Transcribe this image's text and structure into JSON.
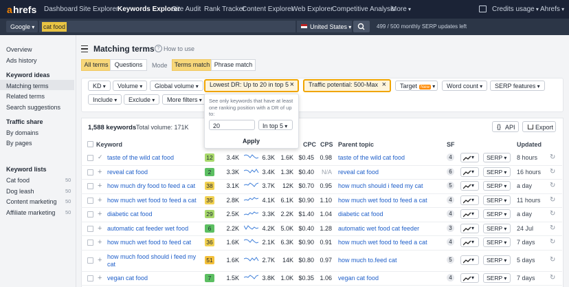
{
  "nav": {
    "logo_a": "a",
    "logo_rest": "hrefs",
    "items": [
      "Dashboard",
      "Site Explorer",
      "Keywords Explorer",
      "Site Audit",
      "Rank Tracker",
      "Content Explorer",
      "Web Explorer",
      "Competitive Analysis",
      "More"
    ],
    "credits": "Credits usage",
    "account": "Ahrefs"
  },
  "search": {
    "engine": "Google",
    "query": "cat food",
    "country": "United States",
    "quota": "499 / 500  monthly SERP updates left"
  },
  "sidebar": {
    "top": [
      "Overview",
      "Ads history"
    ],
    "sections": [
      {
        "title": "Keyword ideas",
        "items": [
          "Matching terms",
          "Related terms",
          "Search suggestions"
        ]
      },
      {
        "title": "Traffic share",
        "items": [
          "By domains",
          "By pages"
        ]
      }
    ],
    "lists": {
      "title": "Keyword lists",
      "items": [
        {
          "name": "Cat food",
          "count": 50
        },
        {
          "name": "Dog leash",
          "count": 50
        },
        {
          "name": "Content marketing",
          "count": 50
        },
        {
          "name": "Affiliate marketing",
          "count": 50
        }
      ]
    }
  },
  "header": {
    "title": "Matching terms",
    "help": "How to use"
  },
  "tabs": {
    "scope": [
      "All terms",
      "Questions"
    ],
    "mode_label": "Mode",
    "mode": [
      "Terms match",
      "Phrase match"
    ]
  },
  "filters": {
    "row1": [
      "KD",
      "Volume",
      "Global volume"
    ],
    "active": [
      "Lowest DR: Up to 20 in top 5",
      "Traffic potential: 500-Max"
    ],
    "target": "Target",
    "new_badge": "New",
    "more": [
      "Word count",
      "SERP features"
    ],
    "row2": [
      "Include",
      "Exclude",
      "More filters"
    ]
  },
  "popup": {
    "text": "See only keywords that have at least one ranking position with a DR of up to:",
    "value": "20",
    "position": "In top 5",
    "button": "Apply"
  },
  "summary": {
    "count": "1,588 keywords",
    "total_volume": "Total volume: 171K",
    "api": "API",
    "export": "Export"
  },
  "table": {
    "columns": {
      "keyword": "Keyword",
      "cpc": "CPC",
      "cps": "CPS",
      "parent": "Parent topic",
      "sf": "SF",
      "updated": "Updated"
    },
    "serp": "SERP",
    "rows": [
      {
        "keyword": "taste of the wild cat food",
        "kd": 12,
        "volume": "3.4K",
        "gv": "6.3K",
        "tp": "1.6K",
        "cpc": "$0.45",
        "cps": "0.98",
        "parent": "taste of the wild cat food",
        "sf": 4,
        "updated": "8 hours"
      },
      {
        "keyword": "reveal cat food",
        "kd": 2,
        "volume": "3.3K",
        "gv": "3.4K",
        "tp": "1.3K",
        "cpc": "$0.40",
        "cps": "N/A",
        "parent": "reveal cat food",
        "sf": 6,
        "updated": "16 hours"
      },
      {
        "keyword": "how much dry food to feed a cat",
        "kd": 38,
        "volume": "3.1K",
        "gv": "3.7K",
        "tp": "12K",
        "cpc": "$0.70",
        "cps": "0.95",
        "parent": "how much should i feed my cat",
        "sf": 5,
        "updated": "a day"
      },
      {
        "keyword": "how much wet food to feed a cat",
        "kd": 35,
        "volume": "2.8K",
        "gv": "4.1K",
        "tp": "6.1K",
        "cpc": "$0.90",
        "cps": "1.10",
        "parent": "how much wet food to feed a cat",
        "sf": 4,
        "updated": "11 hours"
      },
      {
        "keyword": "diabetic cat food",
        "kd": 29,
        "volume": "2.5K",
        "gv": "3.3K",
        "tp": "2.2K",
        "cpc": "$1.40",
        "cps": "1.04",
        "parent": "diabetic cat food",
        "sf": 4,
        "updated": "a day"
      },
      {
        "keyword": "automatic cat feeder wet food",
        "kd": 6,
        "volume": "2.2K",
        "gv": "4.2K",
        "tp": "5.0K",
        "cpc": "$0.40",
        "cps": "1.28",
        "parent": "automatic wet food cat feeder",
        "sf": 3,
        "updated": "24 Jul"
      },
      {
        "keyword": "how much wet food to feed cat",
        "kd": 36,
        "volume": "1.6K",
        "gv": "2.1K",
        "tp": "6.3K",
        "cpc": "$0.90",
        "cps": "0.91",
        "parent": "how much wet food to feed a cat",
        "sf": 4,
        "updated": "7 days"
      },
      {
        "keyword": "how much food should i feed my cat",
        "kd": 51,
        "volume": "1.6K",
        "gv": "2.7K",
        "tp": "14K",
        "cpc": "$0.80",
        "cps": "0.97",
        "parent": "how much to.feed cat",
        "sf": 5,
        "updated": "5 days"
      },
      {
        "keyword": "vegan cat food",
        "kd": 7,
        "volume": "1.5K",
        "gv": "3.8K",
        "tp": "1.0K",
        "cpc": "$0.35",
        "cps": "1.06",
        "parent": "vegan cat food",
        "sf": 4,
        "updated": "7 days"
      }
    ]
  }
}
